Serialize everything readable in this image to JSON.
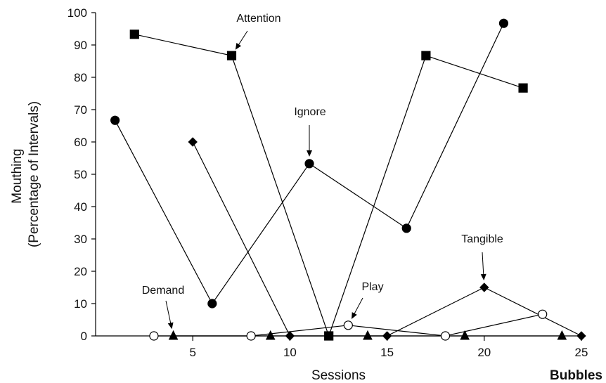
{
  "chart_data": {
    "type": "scatter",
    "title": "",
    "xlabel": "Sessions",
    "ylabel_lines": [
      "Mouthing",
      "(Percentage of Intervals)"
    ],
    "corner_label": "Bubbles",
    "xlim": [
      0,
      25
    ],
    "ylim": [
      0,
      100
    ],
    "x_ticks": [
      5,
      10,
      15,
      20,
      25
    ],
    "y_ticks": [
      0,
      10,
      20,
      30,
      40,
      50,
      60,
      70,
      80,
      90,
      100
    ],
    "grid": false,
    "series": [
      {
        "name": "Attention",
        "marker": "square",
        "filled": true,
        "x": [
          2,
          7,
          12,
          17,
          22
        ],
        "y": [
          93.3,
          86.7,
          0,
          86.7,
          76.7
        ]
      },
      {
        "name": "Ignore",
        "marker": "circle",
        "filled": true,
        "x": [
          1,
          6,
          11,
          16,
          21
        ],
        "y": [
          66.7,
          10,
          53.3,
          33.3,
          96.7
        ]
      },
      {
        "name": "Tangible",
        "marker": "diamond",
        "filled": true,
        "x": [
          5,
          10,
          15,
          20,
          25
        ],
        "y": [
          60,
          0,
          0,
          15,
          0
        ]
      },
      {
        "name": "Play",
        "marker": "circle",
        "filled": false,
        "x": [
          3,
          8,
          13,
          18,
          23
        ],
        "y": [
          0,
          0,
          3.3,
          0,
          6.7
        ]
      },
      {
        "name": "Demand",
        "marker": "triangle",
        "filled": true,
        "x": [
          4,
          9,
          14,
          19,
          24
        ],
        "y": [
          0,
          0,
          0,
          0,
          0
        ]
      }
    ],
    "annotations": [
      {
        "text": "Attention",
        "series": "Attention",
        "point_index": 1
      },
      {
        "text": "Ignore",
        "series": "Ignore",
        "point_index": 2
      },
      {
        "text": "Tangible",
        "series": "Tangible",
        "point_index": 3
      },
      {
        "text": "Play",
        "series": "Play",
        "point_index": 2
      },
      {
        "text": "Demand",
        "series": "Demand",
        "point_index": 0
      }
    ]
  }
}
